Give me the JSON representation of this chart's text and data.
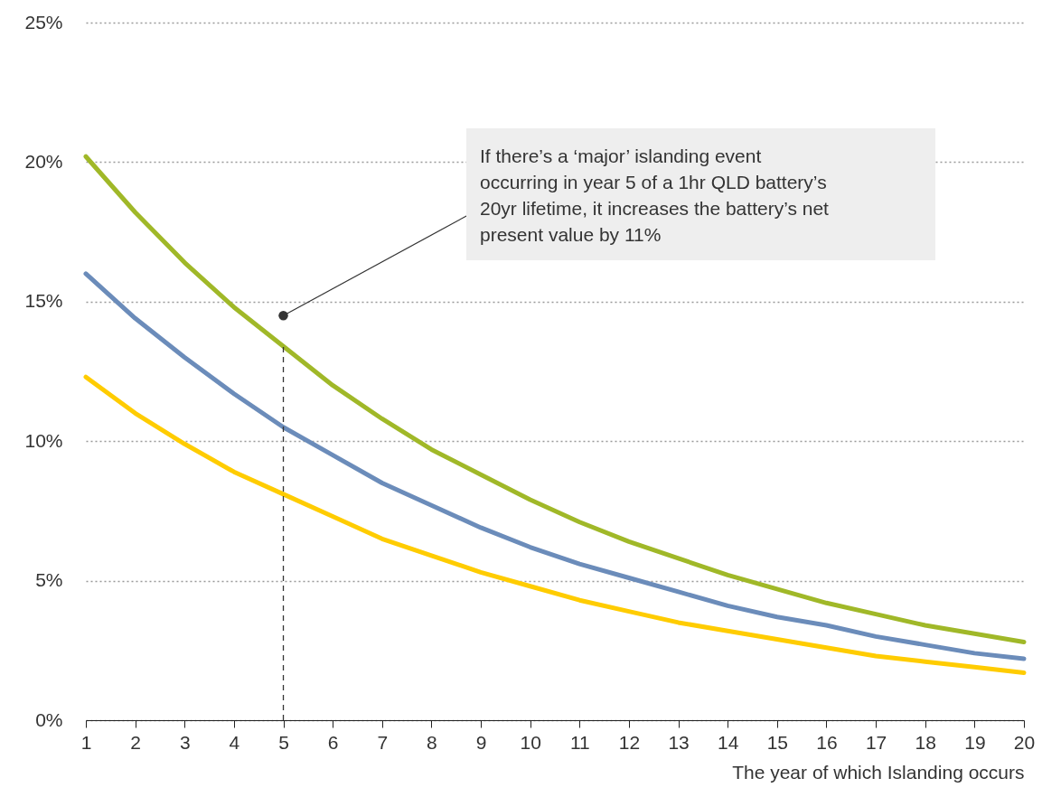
{
  "chart_data": {
    "type": "line",
    "xlabel": "The year of which Islanding occurs",
    "x": [
      1,
      2,
      3,
      4,
      5,
      6,
      7,
      8,
      9,
      10,
      11,
      12,
      13,
      14,
      15,
      16,
      17,
      18,
      19,
      20
    ],
    "series": [
      {
        "color": "#a0b828",
        "values": [
          20.2,
          18.2,
          16.4,
          14.8,
          13.4,
          12.0,
          10.8,
          9.7,
          8.8,
          7.9,
          7.1,
          6.4,
          5.8,
          5.2,
          4.7,
          4.2,
          3.8,
          3.4,
          3.1,
          2.8
        ]
      },
      {
        "color": "#6b8cba",
        "values": [
          16.0,
          14.4,
          13.0,
          11.7,
          10.5,
          9.5,
          8.5,
          7.7,
          6.9,
          6.2,
          5.6,
          5.1,
          4.6,
          4.1,
          3.7,
          3.4,
          3.0,
          2.7,
          2.4,
          2.2
        ]
      },
      {
        "color": "#ffcc00",
        "values": [
          12.3,
          11.0,
          9.9,
          8.9,
          8.1,
          7.3,
          6.5,
          5.9,
          5.3,
          4.8,
          4.3,
          3.9,
          3.5,
          3.2,
          2.9,
          2.6,
          2.3,
          2.1,
          1.9,
          1.7
        ]
      }
    ],
    "xlim": [
      1,
      20
    ],
    "xticks": [
      1,
      2,
      3,
      4,
      5,
      6,
      7,
      8,
      9,
      10,
      11,
      12,
      13,
      14,
      15,
      16,
      17,
      18,
      19,
      20
    ],
    "ylim": [
      0,
      25
    ],
    "yticks": [
      {
        "value": 0,
        "label": "0%"
      },
      {
        "value": 5,
        "label": "5%"
      },
      {
        "value": 10,
        "label": "10%"
      },
      {
        "value": 15,
        "label": "15%"
      },
      {
        "value": 20,
        "label": "20%"
      },
      {
        "value": 25,
        "label": "25%"
      }
    ],
    "grid": "y",
    "marker": "none",
    "line_style": "solid",
    "ref_lines": [
      {
        "axis": "x",
        "value": 5,
        "line_style": "dashed",
        "color": "#333333"
      }
    ],
    "annotations": [
      {
        "text": "If there’s a ‘major’ islanding event occurring in year 5 of a 1hr QLD battery’s 20yr lifetime, it increases the battery’s net present value by 11%",
        "x": 5,
        "y": 14.5
      }
    ]
  }
}
